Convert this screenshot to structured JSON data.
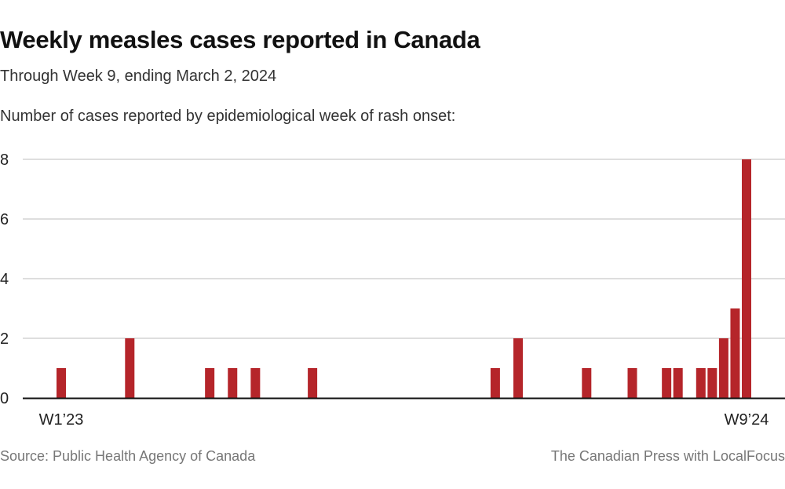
{
  "header": {
    "title": "Weekly measles cases reported in Canada",
    "subtitle": "Through Week 9, ending March 2, 2024",
    "axis_caption": "Number of cases reported by epidemiological week of rash onset:"
  },
  "footer": {
    "source": "Source:  Public Health Agency of Canada",
    "credit": "The Canadian Press with LocalFocus"
  },
  "colors": {
    "bar": "#b5252a",
    "grid": "#d4d4d4",
    "axis": "#111111"
  },
  "chart_data": {
    "type": "bar",
    "title": "Weekly measles cases reported in Canada",
    "subtitle": "Through Week 9, ending March 2, 2024",
    "xlabel": "",
    "ylabel": "Number of cases reported by epidemiological week of rash onset",
    "ylim": [
      0,
      8
    ],
    "yticks": [
      0,
      2,
      4,
      6,
      8
    ],
    "grid": true,
    "x_tick_labels": [
      {
        "label": "W1’23",
        "week_index": 0
      },
      {
        "label": "W9’24",
        "week_index": 60
      }
    ],
    "week_count": 61,
    "categories": [
      "W1'23",
      "W7'23",
      "W14'23",
      "W16'23",
      "W18'23",
      "W23'23",
      "W39'23",
      "W41'23",
      "W47'23",
      "W51'23",
      "W2'24",
      "W3'24",
      "W5'24",
      "W6'24",
      "W7'24",
      "W8'24",
      "W9'24"
    ],
    "week_index": [
      0,
      6,
      13,
      15,
      17,
      22,
      38,
      40,
      46,
      50,
      53,
      54,
      56,
      57,
      58,
      59,
      60
    ],
    "values": [
      1,
      2,
      1,
      1,
      1,
      1,
      1,
      2,
      1,
      1,
      1,
      1,
      1,
      1,
      2,
      3,
      8
    ]
  }
}
